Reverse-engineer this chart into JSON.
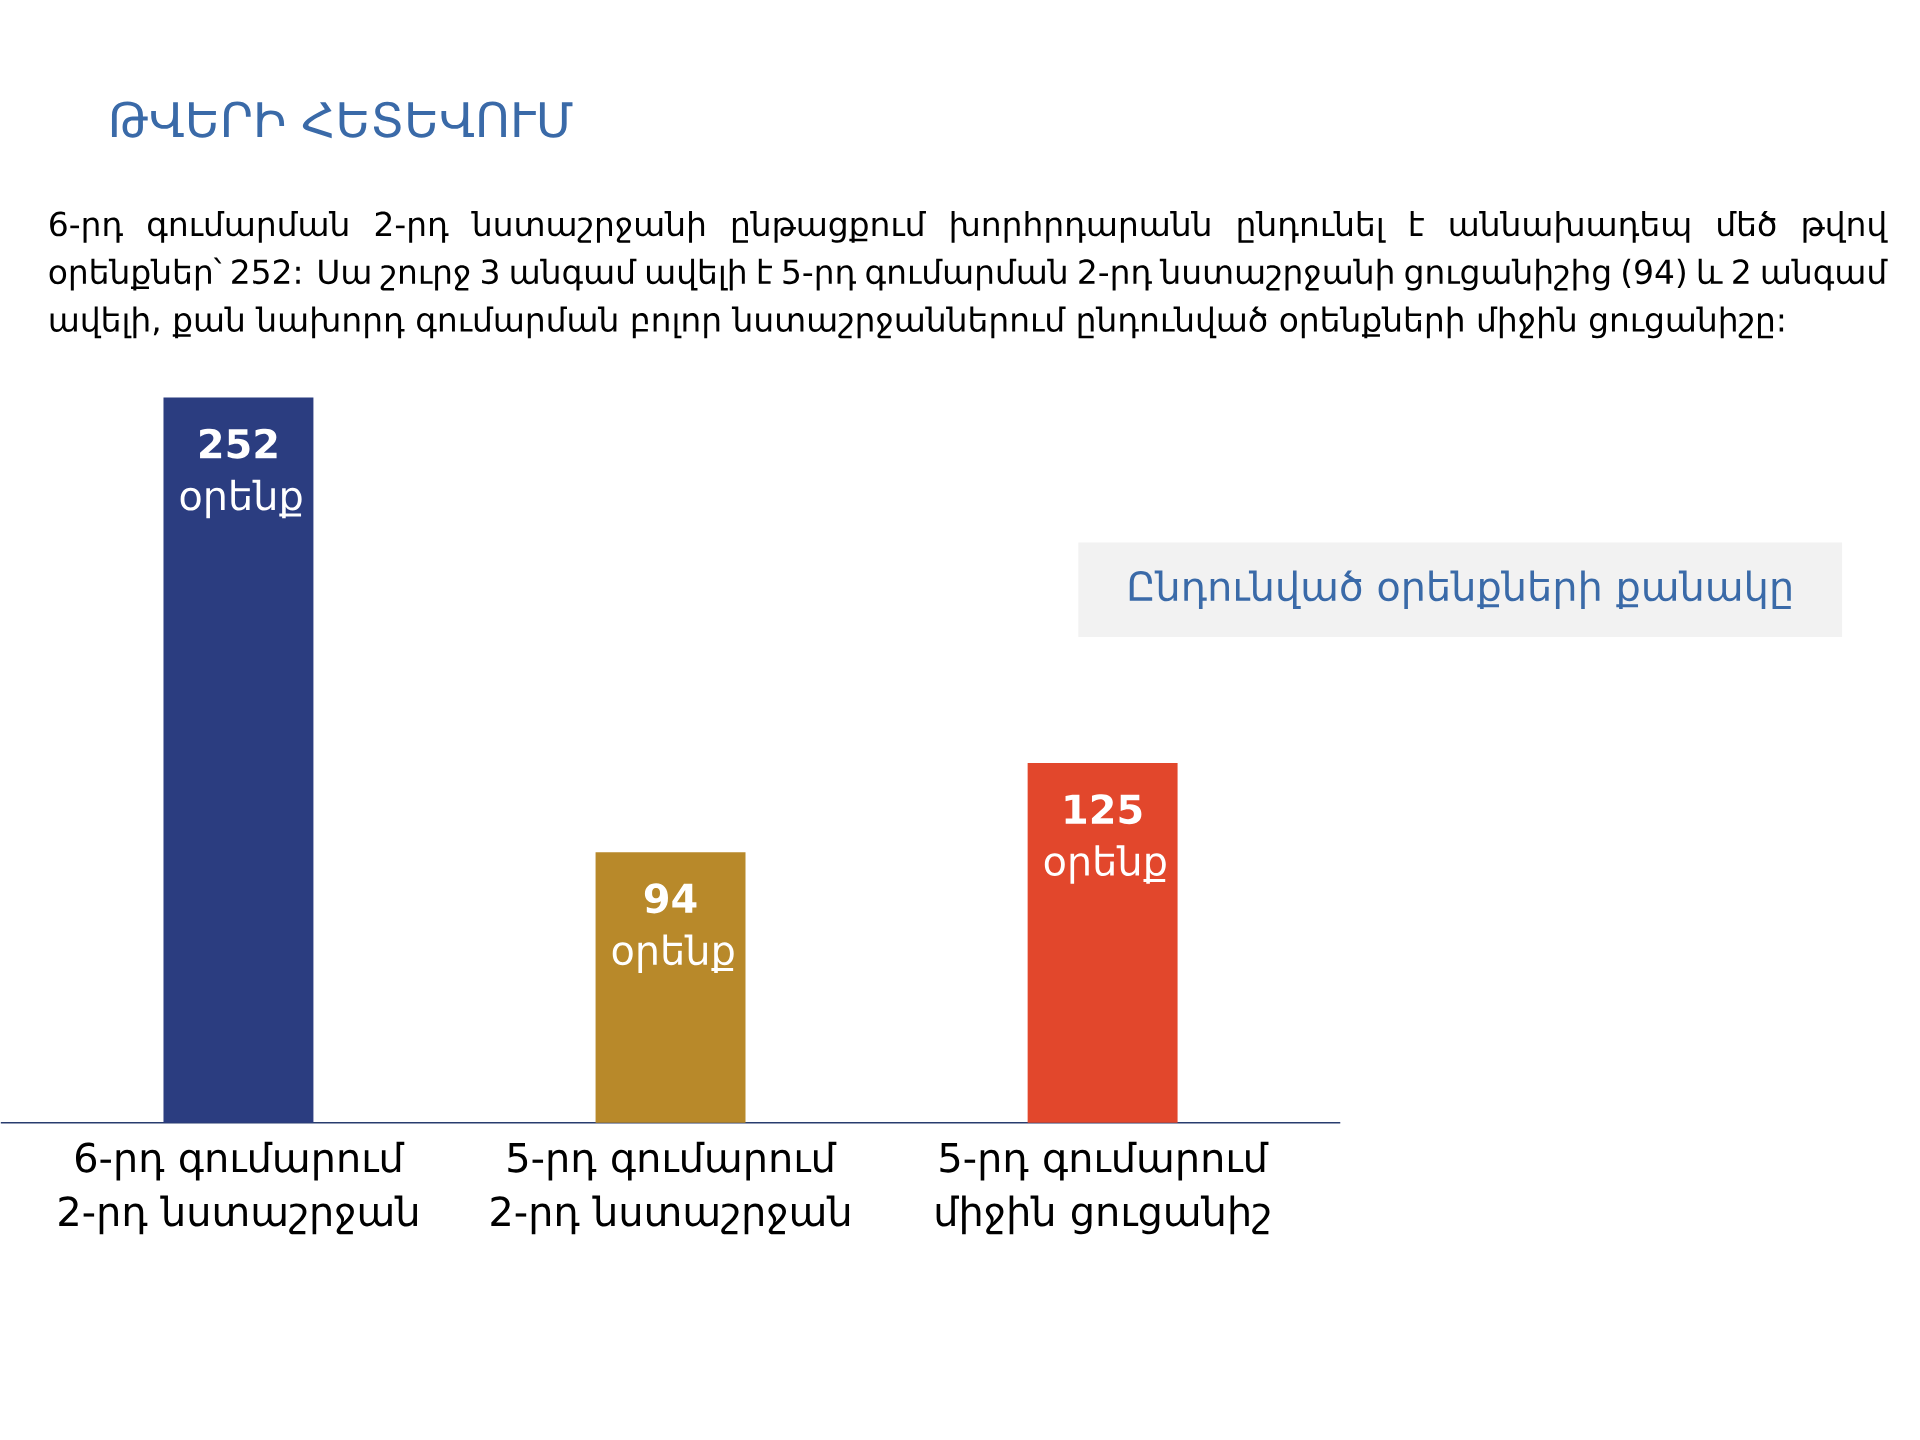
{
  "chart_data": {
    "type": "bar",
    "title": "ԹՎԵՐԻ ՀԵՏԵՎՈՒՄ",
    "subtitle": "Ընդունված օրենքների քանակը",
    "annotations": [
      "6-րդ գումարման 2-րդ նստաշրջանի ընթացքում խորհրդարանն ընդունել է աննախադեպ մեծ թվով օրենքներ՝ 252: Սա շուրջ 3 անգամ ավելի է 5-րդ գումարման 2-րդ նստաշրջանի ցուցանիշից (94) և 2 անգամ ավելի, քան նախորդ գումարման բոլոր նստաշրջաններում ընդունված օրենքների միջին ցուցանիշը:"
    ],
    "categories": [
      "6-րդ գումարում 2-րդ նստաշրջան",
      "5-րդ գումարում 2-րդ նստաշրջան",
      "5-րդ գումարում միջին ցուցանիշ"
    ],
    "values": [
      252,
      94,
      125
    ],
    "colors": [
      "#2b3d80",
      "#b8892a",
      "#e2472c"
    ],
    "value_labels": [
      "**252** օրենք",
      "**94** օրենք",
      "**125** օրենք"
    ]
  }
}
